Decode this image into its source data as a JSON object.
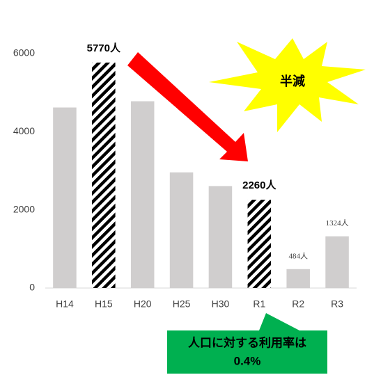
{
  "chart_data": {
    "type": "bar",
    "categories": [
      "H14",
      "H15",
      "H20",
      "H25",
      "H30",
      "R1",
      "R2",
      "R3"
    ],
    "values": [
      4620,
      5770,
      4780,
      2960,
      2610,
      2260,
      484,
      1324
    ],
    "value_labels": [
      null,
      "5770人",
      null,
      null,
      null,
      "2260人",
      "484人",
      "1324人"
    ],
    "bar_styles": [
      "solid",
      "hatched",
      "solid",
      "solid",
      "solid",
      "hatched",
      "solid",
      "solid"
    ],
    "color": "#d0cece",
    "ylim": [
      0,
      6000
    ],
    "yticks": [
      0,
      2000,
      4000,
      6000
    ],
    "grid": false,
    "annotations": {
      "star": "半減",
      "callout": [
        "人口に対する利用率は",
        "0.4%"
      ]
    }
  }
}
